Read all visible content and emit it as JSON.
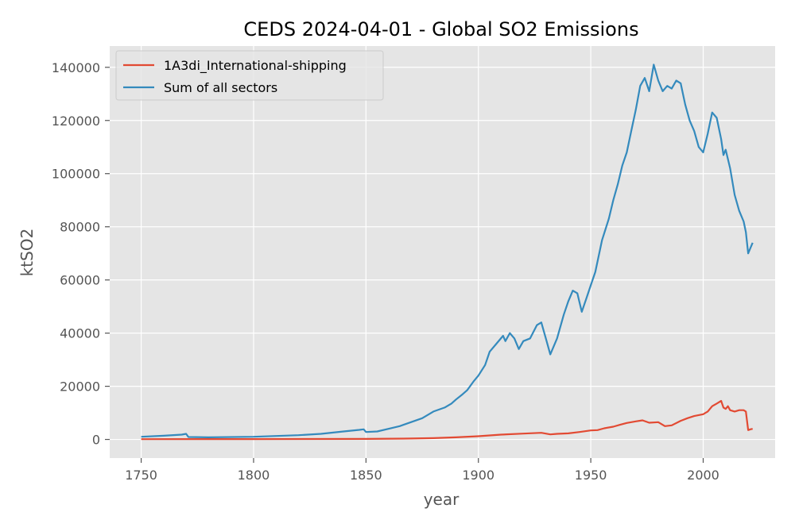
{
  "chart_data": {
    "type": "line",
    "title": "CEDS 2024-04-01 - Global SO2 Emissions",
    "xlabel": "year",
    "ylabel": "ktSO2",
    "xlim": [
      1736,
      2032
    ],
    "ylim": [
      -7000,
      148000
    ],
    "x_ticks": [
      1750,
      1800,
      1850,
      1900,
      1950,
      2000
    ],
    "y_ticks": [
      0,
      20000,
      40000,
      60000,
      80000,
      100000,
      120000,
      140000
    ],
    "grid": true,
    "legend_position": "upper-left",
    "background_color": "#e5e5e5",
    "series": [
      {
        "name": "1A3di_International-shipping",
        "color": "#e24a33",
        "points": [
          [
            1750,
            100
          ],
          [
            1800,
            150
          ],
          [
            1850,
            200
          ],
          [
            1870,
            350
          ],
          [
            1880,
            500
          ],
          [
            1890,
            800
          ],
          [
            1900,
            1200
          ],
          [
            1910,
            1800
          ],
          [
            1920,
            2200
          ],
          [
            1928,
            2500
          ],
          [
            1932,
            1900
          ],
          [
            1935,
            2100
          ],
          [
            1940,
            2300
          ],
          [
            1945,
            2800
          ],
          [
            1950,
            3400
          ],
          [
            1953,
            3500
          ],
          [
            1956,
            4200
          ],
          [
            1960,
            4800
          ],
          [
            1963,
            5500
          ],
          [
            1966,
            6200
          ],
          [
            1970,
            6800
          ],
          [
            1973,
            7200
          ],
          [
            1976,
            6300
          ],
          [
            1980,
            6500
          ],
          [
            1983,
            5000
          ],
          [
            1986,
            5300
          ],
          [
            1990,
            7000
          ],
          [
            1993,
            8000
          ],
          [
            1996,
            8800
          ],
          [
            2000,
            9500
          ],
          [
            2002,
            10500
          ],
          [
            2004,
            12500
          ],
          [
            2006,
            13500
          ],
          [
            2008,
            14500
          ],
          [
            2009,
            12000
          ],
          [
            2010,
            11500
          ],
          [
            2011,
            12500
          ],
          [
            2012,
            11000
          ],
          [
            2014,
            10500
          ],
          [
            2016,
            11000
          ],
          [
            2018,
            11000
          ],
          [
            2019,
            10500
          ],
          [
            2020,
            3500
          ],
          [
            2021,
            3800
          ],
          [
            2022,
            4000
          ]
        ]
      },
      {
        "name": "Sum of all sectors",
        "color": "#348abd",
        "points": [
          [
            1750,
            1000
          ],
          [
            1760,
            1400
          ],
          [
            1768,
            1800
          ],
          [
            1770,
            2100
          ],
          [
            1771,
            900
          ],
          [
            1780,
            800
          ],
          [
            1800,
            1000
          ],
          [
            1820,
            1600
          ],
          [
            1830,
            2100
          ],
          [
            1840,
            3000
          ],
          [
            1847,
            3600
          ],
          [
            1849,
            3800
          ],
          [
            1850,
            2800
          ],
          [
            1855,
            3000
          ],
          [
            1860,
            4000
          ],
          [
            1865,
            5000
          ],
          [
            1870,
            6500
          ],
          [
            1875,
            8000
          ],
          [
            1880,
            10500
          ],
          [
            1885,
            12000
          ],
          [
            1888,
            13500
          ],
          [
            1890,
            15000
          ],
          [
            1893,
            17000
          ],
          [
            1895,
            18500
          ],
          [
            1898,
            22000
          ],
          [
            1900,
            24000
          ],
          [
            1903,
            28000
          ],
          [
            1905,
            33000
          ],
          [
            1908,
            36000
          ],
          [
            1911,
            39000
          ],
          [
            1912,
            37000
          ],
          [
            1914,
            40000
          ],
          [
            1916,
            38000
          ],
          [
            1918,
            34000
          ],
          [
            1920,
            37000
          ],
          [
            1923,
            38000
          ],
          [
            1926,
            43000
          ],
          [
            1928,
            44000
          ],
          [
            1930,
            38000
          ],
          [
            1932,
            32000
          ],
          [
            1935,
            38000
          ],
          [
            1938,
            47000
          ],
          [
            1940,
            52000
          ],
          [
            1942,
            56000
          ],
          [
            1944,
            55000
          ],
          [
            1946,
            48000
          ],
          [
            1948,
            53000
          ],
          [
            1950,
            58000
          ],
          [
            1952,
            63000
          ],
          [
            1955,
            75000
          ],
          [
            1958,
            83000
          ],
          [
            1960,
            90000
          ],
          [
            1962,
            96000
          ],
          [
            1964,
            103000
          ],
          [
            1966,
            108000
          ],
          [
            1968,
            116000
          ],
          [
            1970,
            124000
          ],
          [
            1972,
            133000
          ],
          [
            1974,
            136000
          ],
          [
            1976,
            131000
          ],
          [
            1978,
            141000
          ],
          [
            1980,
            135000
          ],
          [
            1982,
            131000
          ],
          [
            1984,
            133000
          ],
          [
            1986,
            132000
          ],
          [
            1988,
            135000
          ],
          [
            1990,
            134000
          ],
          [
            1992,
            126000
          ],
          [
            1994,
            120000
          ],
          [
            1996,
            116000
          ],
          [
            1998,
            110000
          ],
          [
            2000,
            108000
          ],
          [
            2002,
            115000
          ],
          [
            2004,
            123000
          ],
          [
            2006,
            121000
          ],
          [
            2008,
            113000
          ],
          [
            2009,
            107000
          ],
          [
            2010,
            109000
          ],
          [
            2012,
            102000
          ],
          [
            2014,
            92000
          ],
          [
            2016,
            86000
          ],
          [
            2018,
            82000
          ],
          [
            2019,
            78000
          ],
          [
            2020,
            70000
          ],
          [
            2021,
            72000
          ],
          [
            2022,
            74000
          ]
        ]
      }
    ]
  }
}
